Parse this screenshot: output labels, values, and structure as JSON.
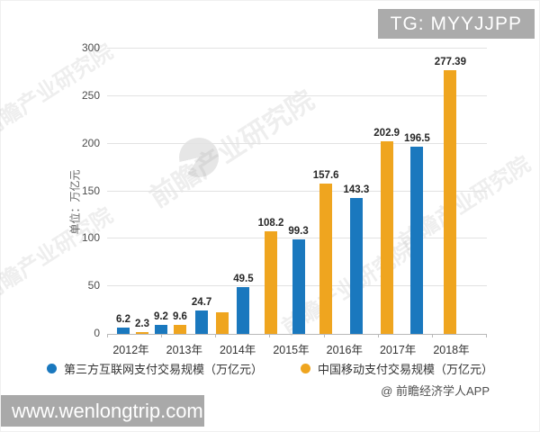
{
  "overlay": {
    "badge": "TG: MYYJJPP",
    "watermark_site": "www.wenlongtrip.com",
    "credit": "@ 前瞻经济学人APP",
    "watermark_brand": "前瞻产业研究院"
  },
  "chart_data": {
    "type": "bar",
    "title": "",
    "ylabel": "单位：万亿元",
    "categories": [
      "2012年",
      "2013年",
      "2014年",
      "2015年",
      "2016年",
      "2017年",
      "2018年"
    ],
    "series": [
      {
        "name": "第三方互联网支付交易规模（万亿元）",
        "color": "#1a78be",
        "values": [
          6.2,
          9.2,
          24.7,
          49.5,
          99.3,
          143.3,
          196.5
        ],
        "labels": [
          "6.2",
          "9.2",
          "24.7",
          "49.5",
          "99.3",
          "143.3",
          "196.5"
        ]
      },
      {
        "name": "中国移动支付交易规模（万亿元）",
        "color": "#efa51f",
        "values": [
          2.3,
          9.6,
          22.6,
          108.2,
          157.6,
          202.9,
          277.39
        ],
        "labels": [
          "2.3",
          "9.6",
          "",
          "108.2",
          "157.6",
          "202.9",
          "277.39"
        ]
      }
    ],
    "ylim": [
      0,
      300
    ],
    "yticks": [
      0,
      50,
      100,
      150,
      200,
      250,
      300
    ],
    "grid": true,
    "legend_position": "bottom"
  }
}
